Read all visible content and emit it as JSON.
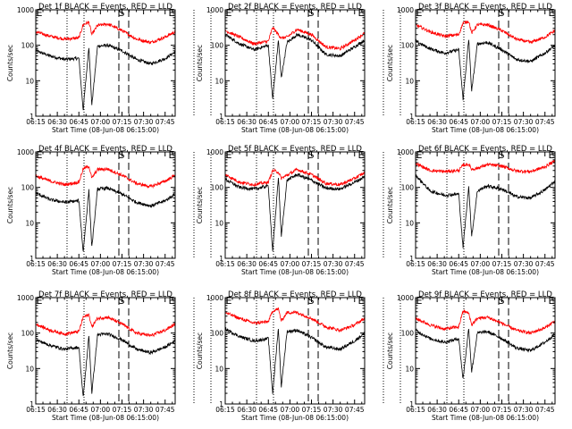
{
  "colors": {
    "events": "#000000",
    "lld": "#ff0000",
    "axis": "#000000",
    "background": "#ffffff"
  },
  "chart_data": [
    {
      "type": "line",
      "title": "Det 1f BLACK = Events, RED = LLD",
      "ylabel": "Counts/sec",
      "xlabel": "Start Time (08-Jun-08 06:15:00)",
      "yscale": "log",
      "ylim": [
        1,
        1000
      ],
      "yticks": [
        "1",
        "10",
        "100",
        "1000"
      ],
      "xlim": [
        "06:15",
        "07:52"
      ],
      "xticks": [
        "06:15",
        "06:30",
        "06:45",
        "07:00",
        "07:15",
        "07:30",
        "07:45"
      ],
      "markers": [
        "E",
        "S",
        "E"
      ],
      "series": [
        {
          "name": "Events",
          "color": "#000000",
          "x": [
            "06:15",
            "06:25",
            "06:35",
            "06:45",
            "06:48",
            "06:52",
            "06:54",
            "06:58",
            "07:05",
            "07:15",
            "07:25",
            "07:35",
            "07:45",
            "07:52"
          ],
          "y": [
            70,
            50,
            40,
            43,
            1.5,
            95,
            2,
            95,
            100,
            70,
            40,
            30,
            42,
            65
          ]
        },
        {
          "name": "LLD",
          "color": "#ff0000",
          "x": [
            "06:15",
            "06:25",
            "06:35",
            "06:45",
            "06:48",
            "06:52",
            "06:54",
            "06:58",
            "07:05",
            "07:15",
            "07:25",
            "07:35",
            "07:45",
            "07:52"
          ],
          "y": [
            240,
            180,
            150,
            160,
            380,
            450,
            200,
            360,
            400,
            260,
            150,
            120,
            170,
            240
          ]
        }
      ]
    },
    {
      "type": "line",
      "title": "Det 2f BLACK = Events, RED = LLD",
      "ylabel": "Counts/sec",
      "xlabel": "Start Time (08-Jun-08 06:15:00)",
      "yscale": "log",
      "ylim": [
        1,
        1000
      ],
      "yticks": [
        "1",
        "10",
        "100",
        "1000"
      ],
      "xlim": [
        "06:15",
        "07:52"
      ],
      "xticks": [
        "06:15",
        "06:30",
        "06:45",
        "07:00",
        "07:15",
        "07:30",
        "07:45"
      ],
      "markers": [
        "E",
        "S",
        "E"
      ],
      "series": [
        {
          "name": "Events",
          "color": "#000000",
          "x": [
            "06:15",
            "06:25",
            "06:35",
            "06:45",
            "06:48",
            "06:52",
            "06:54",
            "06:58",
            "07:05",
            "07:15",
            "07:25",
            "07:35",
            "07:45",
            "07:52"
          ],
          "y": [
            200,
            110,
            75,
            100,
            3,
            140,
            12,
            120,
            200,
            140,
            55,
            50,
            90,
            140
          ]
        },
        {
          "name": "LLD",
          "color": "#ff0000",
          "x": [
            "06:15",
            "06:25",
            "06:35",
            "06:45",
            "06:48",
            "06:52",
            "06:54",
            "06:58",
            "07:05",
            "07:15",
            "07:25",
            "07:35",
            "07:45",
            "07:52"
          ],
          "y": [
            260,
            170,
            110,
            130,
            320,
            200,
            160,
            170,
            280,
            200,
            90,
            80,
            140,
            220
          ]
        }
      ]
    },
    {
      "type": "line",
      "title": "Det 3f BLACK = Events, RED = LLD",
      "ylabel": "Counts/sec",
      "xlabel": "Start Time (08-Jun-08 06:15:00)",
      "yscale": "log",
      "ylim": [
        1,
        1000
      ],
      "yticks": [
        "1",
        "10",
        "100",
        "1000"
      ],
      "xlim": [
        "06:15",
        "07:52"
      ],
      "xticks": [
        "06:15",
        "06:30",
        "06:45",
        "07:00",
        "07:15",
        "07:30",
        "07:45"
      ],
      "markers": [
        "E",
        "S",
        "E"
      ],
      "series": [
        {
          "name": "Events",
          "color": "#000000",
          "x": [
            "06:15",
            "06:25",
            "06:35",
            "06:45",
            "06:48",
            "06:52",
            "06:54",
            "06:58",
            "07:05",
            "07:15",
            "07:25",
            "07:35",
            "07:45",
            "07:52"
          ],
          "y": [
            130,
            80,
            60,
            75,
            3,
            150,
            5,
            110,
            120,
            75,
            40,
            35,
            60,
            100
          ]
        },
        {
          "name": "LLD",
          "color": "#ff0000",
          "x": [
            "06:15",
            "06:25",
            "06:35",
            "06:45",
            "06:48",
            "06:52",
            "06:54",
            "06:58",
            "07:05",
            "07:15",
            "07:25",
            "07:35",
            "07:45",
            "07:52"
          ],
          "y": [
            380,
            240,
            180,
            200,
            420,
            480,
            220,
            380,
            380,
            260,
            150,
            120,
            170,
            260
          ]
        }
      ]
    },
    {
      "type": "line",
      "title": "Det 4f BLACK = Events, RED = LLD",
      "ylabel": "Counts/sec",
      "xlabel": "Start Time (08-Jun-08 06:15:00)",
      "yscale": "log",
      "ylim": [
        1,
        1000
      ],
      "yticks": [
        "1",
        "10",
        "100",
        "1000"
      ],
      "xlim": [
        "06:15",
        "07:52"
      ],
      "xticks": [
        "06:15",
        "06:30",
        "06:45",
        "07:00",
        "07:15",
        "07:30",
        "07:45"
      ],
      "markers": [
        "E",
        "S",
        "E"
      ],
      "series": [
        {
          "name": "Events",
          "color": "#000000",
          "x": [
            "06:15",
            "06:25",
            "06:35",
            "06:45",
            "06:48",
            "06:52",
            "06:54",
            "06:58",
            "07:05",
            "07:15",
            "07:25",
            "07:35",
            "07:45",
            "07:52"
          ],
          "y": [
            70,
            45,
            38,
            42,
            1.5,
            85,
            2,
            90,
            95,
            65,
            38,
            30,
            42,
            65
          ]
        },
        {
          "name": "LLD",
          "color": "#ff0000",
          "x": [
            "06:15",
            "06:25",
            "06:35",
            "06:45",
            "06:48",
            "06:52",
            "06:54",
            "06:58",
            "07:05",
            "07:15",
            "07:25",
            "07:35",
            "07:45",
            "07:52"
          ],
          "y": [
            210,
            150,
            120,
            140,
            330,
            400,
            180,
            320,
            330,
            220,
            130,
            105,
            150,
            220
          ]
        }
      ]
    },
    {
      "type": "line",
      "title": "Det 5f BLACK = Events, RED = LLD",
      "ylabel": "Counts/sec",
      "xlabel": "Start Time (08-Jun-08 06:15:00)",
      "yscale": "log",
      "ylim": [
        1,
        1000
      ],
      "yticks": [
        "1",
        "10",
        "100",
        "1000"
      ],
      "xlim": [
        "06:15",
        "07:52"
      ],
      "xticks": [
        "06:15",
        "06:30",
        "06:45",
        "07:00",
        "07:15",
        "07:30",
        "07:45"
      ],
      "markers": [
        "E",
        "S",
        "E"
      ],
      "series": [
        {
          "name": "Events",
          "color": "#000000",
          "x": [
            "06:15",
            "06:25",
            "06:35",
            "06:45",
            "06:48",
            "06:52",
            "06:54",
            "06:58",
            "07:05",
            "07:15",
            "07:25",
            "07:35",
            "07:45",
            "07:52"
          ],
          "y": [
            170,
            100,
            90,
            110,
            1.5,
            200,
            4,
            160,
            230,
            160,
            95,
            90,
            140,
            200
          ]
        },
        {
          "name": "LLD",
          "color": "#ff0000",
          "x": [
            "06:15",
            "06:25",
            "06:35",
            "06:45",
            "06:48",
            "06:52",
            "06:54",
            "06:58",
            "07:05",
            "07:15",
            "07:25",
            "07:35",
            "07:45",
            "07:52"
          ],
          "y": [
            230,
            140,
            120,
            140,
            300,
            270,
            180,
            220,
            320,
            230,
            130,
            120,
            180,
            260
          ]
        }
      ]
    },
    {
      "type": "line",
      "title": "Det 6f BLACK = Events, RED = LLD",
      "ylabel": "Counts/sec",
      "xlabel": "Start Time (08-Jun-08 06:15:00)",
      "yscale": "log",
      "ylim": [
        1,
        1000
      ],
      "yticks": [
        "1",
        "10",
        "100",
        "1000"
      ],
      "xlim": [
        "06:15",
        "07:52"
      ],
      "xticks": [
        "06:15",
        "06:30",
        "06:45",
        "07:00",
        "07:15",
        "07:30",
        "07:45"
      ],
      "markers": [
        "E",
        "S",
        "E"
      ],
      "series": [
        {
          "name": "Events",
          "color": "#000000",
          "x": [
            "06:15",
            "06:25",
            "06:35",
            "06:45",
            "06:48",
            "06:52",
            "06:54",
            "06:58",
            "07:05",
            "07:15",
            "07:25",
            "07:35",
            "07:45",
            "07:52"
          ],
          "y": [
            220,
            80,
            60,
            65,
            2,
            110,
            4,
            80,
            110,
            90,
            55,
            50,
            85,
            150
          ]
        },
        {
          "name": "LLD",
          "color": "#ff0000",
          "x": [
            "06:15",
            "06:25",
            "06:35",
            "06:45",
            "06:48",
            "06:52",
            "06:54",
            "06:58",
            "07:05",
            "07:15",
            "07:25",
            "07:35",
            "07:45",
            "07:52"
          ],
          "y": [
            480,
            300,
            280,
            300,
            420,
            450,
            320,
            350,
            440,
            400,
            290,
            280,
            380,
            560
          ]
        }
      ]
    },
    {
      "type": "line",
      "title": "Det 7f BLACK = Events, RED = LLD",
      "ylabel": "Counts/sec",
      "xlabel": "Start Time (08-Jun-08 06:15:00)",
      "yscale": "log",
      "ylim": [
        1,
        1000
      ],
      "yticks": [
        "1",
        "10",
        "100",
        "1000"
      ],
      "xlim": [
        "06:15",
        "07:52"
      ],
      "xticks": [
        "06:15",
        "06:30",
        "06:45",
        "07:00",
        "07:15",
        "07:30",
        "07:45"
      ],
      "markers": [
        "E",
        "S",
        "E"
      ],
      "series": [
        {
          "name": "Events",
          "color": "#000000",
          "x": [
            "06:15",
            "06:25",
            "06:35",
            "06:45",
            "06:48",
            "06:52",
            "06:54",
            "06:58",
            "07:05",
            "07:15",
            "07:25",
            "07:35",
            "07:45",
            "07:52"
          ],
          "y": [
            65,
            45,
            35,
            40,
            1.5,
            85,
            2,
            90,
            95,
            65,
            35,
            28,
            40,
            60
          ]
        },
        {
          "name": "LLD",
          "color": "#ff0000",
          "x": [
            "06:15",
            "06:25",
            "06:35",
            "06:45",
            "06:48",
            "06:52",
            "06:54",
            "06:58",
            "07:05",
            "07:15",
            "07:25",
            "07:35",
            "07:45",
            "07:52"
          ],
          "y": [
            180,
            120,
            95,
            110,
            280,
            330,
            150,
            260,
            280,
            180,
            100,
            85,
            120,
            180
          ]
        }
      ]
    },
    {
      "type": "line",
      "title": "Det 8f BLACK = Events, RED = LLD",
      "ylabel": "Counts/sec",
      "xlabel": "Start Time (08-Jun-08 06:15:00)",
      "yscale": "log",
      "ylim": [
        1,
        1000
      ],
      "yticks": [
        "1",
        "10",
        "100",
        "1000"
      ],
      "xlim": [
        "06:15",
        "07:52"
      ],
      "xticks": [
        "06:15",
        "06:30",
        "06:45",
        "07:00",
        "07:15",
        "07:30",
        "07:45"
      ],
      "markers": [
        "E",
        "S",
        "E"
      ],
      "series": [
        {
          "name": "Events",
          "color": "#000000",
          "x": [
            "06:15",
            "06:25",
            "06:35",
            "06:45",
            "06:48",
            "06:52",
            "06:54",
            "06:58",
            "07:05",
            "07:15",
            "07:25",
            "07:35",
            "07:45",
            "07:52"
          ],
          "y": [
            130,
            80,
            60,
            70,
            2,
            140,
            3,
            110,
            120,
            75,
            40,
            35,
            60,
            100
          ]
        },
        {
          "name": "LLD",
          "color": "#ff0000",
          "x": [
            "06:15",
            "06:25",
            "06:35",
            "06:45",
            "06:48",
            "06:52",
            "06:54",
            "06:58",
            "07:05",
            "07:15",
            "07:25",
            "07:35",
            "07:45",
            "07:52"
          ],
          "y": [
            380,
            260,
            190,
            210,
            420,
            480,
            220,
            380,
            380,
            260,
            150,
            120,
            170,
            260
          ]
        }
      ]
    },
    {
      "type": "line",
      "title": "Det 9f BLACK = Events, RED = LLD",
      "ylabel": "Counts/sec",
      "xlabel": "Start Time (08-Jun-08 06:15:00)",
      "yscale": "log",
      "ylim": [
        1,
        1000
      ],
      "yticks": [
        "1",
        "10",
        "100",
        "1000"
      ],
      "xlim": [
        "06:15",
        "07:52"
      ],
      "xticks": [
        "06:15",
        "06:30",
        "06:45",
        "07:00",
        "07:15",
        "07:30",
        "07:45"
      ],
      "markers": [
        "E",
        "S",
        "E"
      ],
      "series": [
        {
          "name": "Events",
          "color": "#000000",
          "x": [
            "06:15",
            "06:25",
            "06:35",
            "06:45",
            "06:48",
            "06:52",
            "06:54",
            "06:58",
            "07:05",
            "07:15",
            "07:25",
            "07:35",
            "07:45",
            "07:52"
          ],
          "y": [
            120,
            70,
            55,
            70,
            5,
            140,
            8,
            100,
            110,
            70,
            38,
            32,
            55,
            95
          ]
        },
        {
          "name": "LLD",
          "color": "#ff0000",
          "x": [
            "06:15",
            "06:25",
            "06:35",
            "06:45",
            "06:48",
            "06:52",
            "06:54",
            "06:58",
            "07:05",
            "07:15",
            "07:25",
            "07:35",
            "07:45",
            "07:52"
          ],
          "y": [
            260,
            170,
            130,
            150,
            420,
            360,
            170,
            260,
            280,
            190,
            120,
            100,
            140,
            220
          ]
        }
      ]
    }
  ]
}
